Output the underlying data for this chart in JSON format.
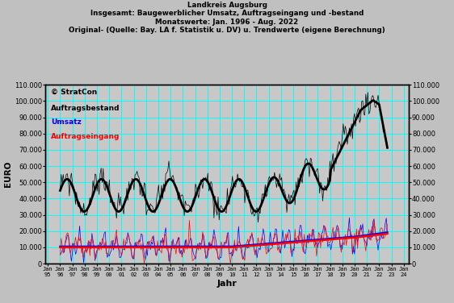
{
  "title_line1": "Landkreis Augsburg",
  "title_line2": "Insgesamt: Baugewerblicher Umsatz, Auftragseingang und -bestand",
  "title_line3": "Monatswerte: Jan. 1996 - Aug. 2022",
  "title_line4": "Original- (Quelle: Bay. LA f. Statistik u. DV) u. Trendwerte (eigene Berechnung)",
  "xlabel": "Jahr",
  "ylabel_left": "EURO",
  "bg_color": "#c0c0c0",
  "plot_bg_color": "#c8c8c8",
  "grid_color": "#00ffff",
  "ylim": [
    0,
    110000
  ],
  "yticks": [
    0,
    10000,
    20000,
    30000,
    40000,
    50000,
    60000,
    70000,
    80000,
    90000,
    100000,
    110000
  ],
  "ytick_labels": [
    "0",
    "10.000",
    "20.000",
    "30.000",
    "40.000",
    "50.000",
    "60.000",
    "70.000",
    "80.000",
    "90.000",
    "100.000",
    "110.000"
  ],
  "legend_text": [
    "Auftragsbestand",
    "Umsatz",
    "Auftragseingang"
  ],
  "legend_colors": [
    "#000000",
    "#0000ff",
    "#ff0000"
  ],
  "watermark": "© StratCon",
  "n_months": 320
}
